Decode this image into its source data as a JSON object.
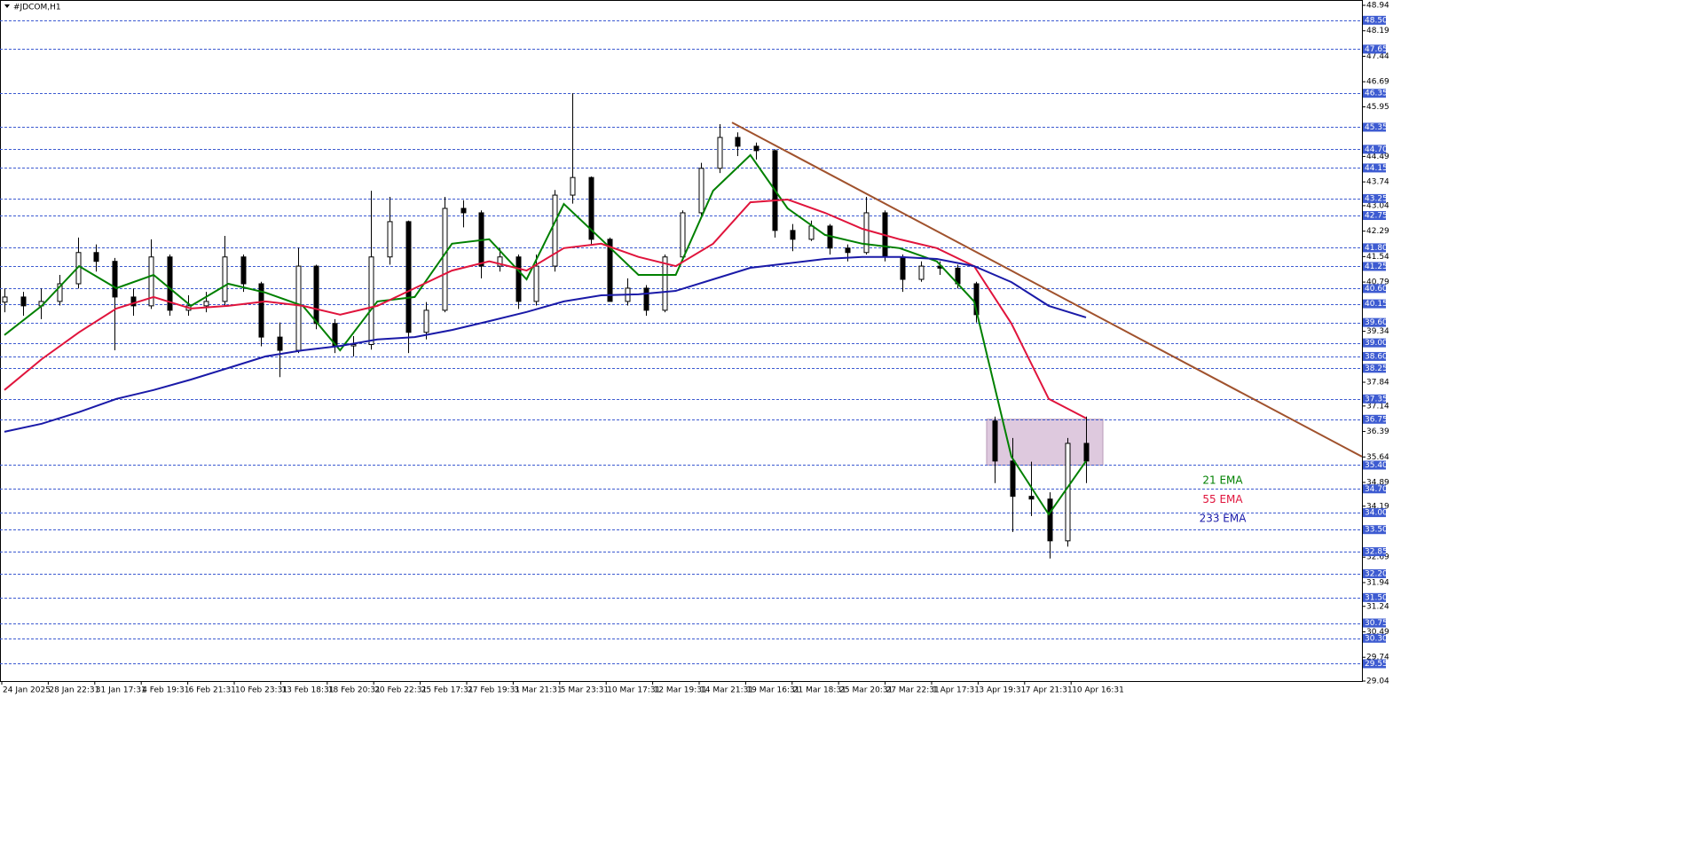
{
  "chart_data": {
    "type": "candlestick",
    "title": "#JDCOM,H1",
    "ohlc": [
      [
        40.2,
        40.6,
        39.9,
        40.35
      ],
      [
        40.35,
        40.5,
        39.8,
        40.09
      ],
      [
        40.09,
        40.6,
        39.7,
        40.22
      ],
      [
        40.22,
        41.0,
        40.1,
        40.74
      ],
      [
        40.74,
        42.1,
        40.6,
        41.66
      ],
      [
        41.66,
        41.9,
        41.1,
        41.4
      ],
      [
        41.4,
        41.5,
        38.78,
        40.35
      ],
      [
        40.35,
        40.6,
        39.8,
        40.09
      ],
      [
        40.09,
        42.05,
        40.0,
        41.53
      ],
      [
        41.53,
        41.6,
        39.8,
        39.96
      ],
      [
        39.96,
        40.4,
        39.8,
        40.09
      ],
      [
        40.09,
        40.5,
        39.9,
        40.22
      ],
      [
        40.22,
        42.15,
        40.1,
        41.53
      ],
      [
        41.53,
        41.6,
        40.5,
        40.74
      ],
      [
        40.74,
        40.8,
        38.9,
        39.17
      ],
      [
        39.17,
        39.6,
        37.99,
        38.78
      ],
      [
        38.78,
        41.8,
        38.7,
        41.26
      ],
      [
        41.26,
        41.3,
        39.4,
        39.57
      ],
      [
        39.57,
        39.7,
        38.7,
        38.91
      ],
      [
        38.91,
        39.2,
        38.6,
        38.95
      ],
      [
        38.95,
        43.48,
        38.8,
        41.53
      ],
      [
        41.53,
        43.3,
        41.3,
        42.57
      ],
      [
        42.57,
        42.6,
        38.7,
        39.31
      ],
      [
        39.31,
        40.2,
        39.1,
        39.96
      ],
      [
        39.96,
        43.3,
        39.9,
        42.96
      ],
      [
        42.96,
        43.2,
        42.4,
        42.83
      ],
      [
        42.83,
        42.9,
        40.9,
        41.26
      ],
      [
        41.26,
        41.8,
        41.1,
        41.53
      ],
      [
        41.53,
        41.6,
        40.0,
        40.22
      ],
      [
        40.22,
        41.6,
        40.1,
        41.26
      ],
      [
        41.26,
        43.5,
        41.1,
        43.35
      ],
      [
        43.35,
        46.35,
        43.1,
        43.87
      ],
      [
        43.87,
        43.9,
        41.9,
        42.05
      ],
      [
        42.05,
        42.1,
        40.3,
        40.22
      ],
      [
        40.22,
        40.9,
        40.1,
        40.61
      ],
      [
        40.61,
        40.7,
        39.8,
        39.96
      ],
      [
        39.96,
        41.6,
        39.9,
        41.53
      ],
      [
        41.53,
        42.9,
        41.4,
        42.83
      ],
      [
        42.83,
        44.3,
        42.7,
        44.14
      ],
      [
        44.14,
        45.44,
        44.0,
        45.05
      ],
      [
        45.05,
        45.2,
        44.5,
        44.79
      ],
      [
        44.79,
        44.9,
        44.4,
        44.66
      ],
      [
        44.66,
        44.7,
        42.1,
        42.31
      ],
      [
        42.31,
        42.5,
        41.7,
        42.05
      ],
      [
        42.05,
        42.6,
        42.0,
        42.44
      ],
      [
        42.44,
        42.5,
        41.6,
        41.79
      ],
      [
        41.79,
        41.9,
        41.4,
        41.66
      ],
      [
        41.66,
        43.3,
        41.6,
        42.83
      ],
      [
        42.83,
        42.9,
        41.4,
        41.53
      ],
      [
        41.53,
        41.6,
        40.5,
        40.87
      ],
      [
        40.87,
        41.4,
        40.8,
        41.26
      ],
      [
        41.26,
        41.4,
        41.0,
        41.2
      ],
      [
        41.2,
        41.3,
        40.6,
        40.74
      ],
      [
        40.74,
        40.8,
        39.6,
        39.83
      ],
      [
        36.7,
        36.83,
        34.87,
        35.52
      ],
      [
        35.52,
        36.2,
        33.43,
        34.48
      ],
      [
        34.48,
        35.5,
        33.9,
        34.4
      ],
      [
        34.4,
        34.6,
        32.65,
        33.17
      ],
      [
        33.17,
        36.2,
        33.0,
        36.04
      ],
      [
        36.04,
        36.83,
        34.87,
        35.52
      ]
    ],
    "series": [
      {
        "name": "21 EMA",
        "color": "#008000",
        "values": [
          39.23,
          40.09,
          41.26,
          40.61,
          41.0,
          40.09,
          40.74,
          40.48,
          40.09,
          38.78,
          40.22,
          40.35,
          41.92,
          42.05,
          40.87,
          43.09,
          42.05,
          41.0,
          41.0,
          43.48,
          44.53,
          42.96,
          42.18,
          41.92,
          41.79,
          41.4,
          40.22,
          35.65,
          33.95,
          35.52
        ]
      },
      {
        "name": "55 EMA",
        "color": "#e0143c",
        "values": [
          37.61,
          38.52,
          39.31,
          40.01,
          40.35,
          40.01,
          40.09,
          40.22,
          40.09,
          39.83,
          40.09,
          40.61,
          41.13,
          41.4,
          41.13,
          41.79,
          41.92,
          41.53,
          41.26,
          41.92,
          43.14,
          43.22,
          42.83,
          42.36,
          42.05,
          41.79,
          41.26,
          39.57,
          37.35,
          36.78
        ]
      },
      {
        "name": "233 EMA",
        "color": "#1a1aa8",
        "values": [
          36.38,
          36.62,
          36.96,
          37.35,
          37.61,
          37.92,
          38.26,
          38.6,
          38.78,
          38.91,
          39.1,
          39.17,
          39.38,
          39.64,
          39.91,
          40.22,
          40.4,
          40.43,
          40.53,
          40.87,
          41.21,
          41.34,
          41.47,
          41.53,
          41.53,
          41.47,
          41.26,
          40.79,
          40.09,
          39.75
        ]
      }
    ],
    "trendline": {
      "color": "#a0522d",
      "values": [
        45.49,
        35.65
      ]
    },
    "zone": {
      "color": "#d8bfd8",
      "values": [
        35.4,
        36.75
      ]
    },
    "level_color": "#3d5bd1",
    "levels": [
      {
        "value": 48.5,
        "label": "48.50"
      },
      47.65,
      46.35,
      45.35,
      {
        "value": 44.7,
        "label": "44.70"
      },
      44.15,
      43.25,
      42.75,
      {
        "value": 41.8,
        "label": "41.80"
      },
      41.25,
      {
        "value": 40.6,
        "label": "40.60"
      },
      40.15,
      {
        "value": 39.6,
        "label": "39.60"
      },
      {
        "value": 39.0,
        "label": "39.00"
      },
      {
        "value": 38.6,
        "label": "38.60"
      },
      38.25,
      37.35,
      36.75,
      {
        "value": 35.4,
        "label": "35.40"
      },
      {
        "value": 34.7,
        "label": "34.70"
      },
      {
        "value": 34.0,
        "label": "34.00"
      },
      {
        "value": 33.5,
        "label": "33.50"
      },
      32.85,
      {
        "value": 32.2,
        "label": "32.20"
      },
      {
        "value": 31.5,
        "label": "31.50"
      },
      30.75,
      {
        "value": 30.3,
        "label": "30.30"
      },
      29.55
    ],
    "ylim": [
      29.04,
      48.94
    ],
    "yticks": [
      48.94,
      48.19,
      47.44,
      46.69,
      45.95,
      44.49,
      43.74,
      43.04,
      42.29,
      41.54,
      40.79,
      39.34,
      37.84,
      37.14,
      36.39,
      35.64,
      34.89,
      34.19,
      32.69,
      31.94,
      31.24,
      30.49,
      29.74,
      29.04
    ],
    "time_labels": [
      "24 Jan 2025",
      "28 Jan 22:31",
      "31 Jan 17:31",
      "4 Feb 19:31",
      "6 Feb 21:31",
      "10 Feb 23:31",
      "13 Feb 18:31",
      "18 Feb 20:31",
      "20 Feb 22:31",
      "25 Feb 17:31",
      "27 Feb 19:31",
      "3 Mar 21:31",
      "5 Mar 23:31",
      "10 Mar 17:31",
      "12 Mar 19:31",
      "14 Mar 21:31",
      "19 Mar 16:31",
      "21 Mar 18:31",
      "25 Mar 20:31",
      "27 Mar 22:31",
      "1 Apr 17:31",
      "3 Apr 19:31",
      "7 Apr 21:31",
      "10 Apr 16:31"
    ]
  }
}
